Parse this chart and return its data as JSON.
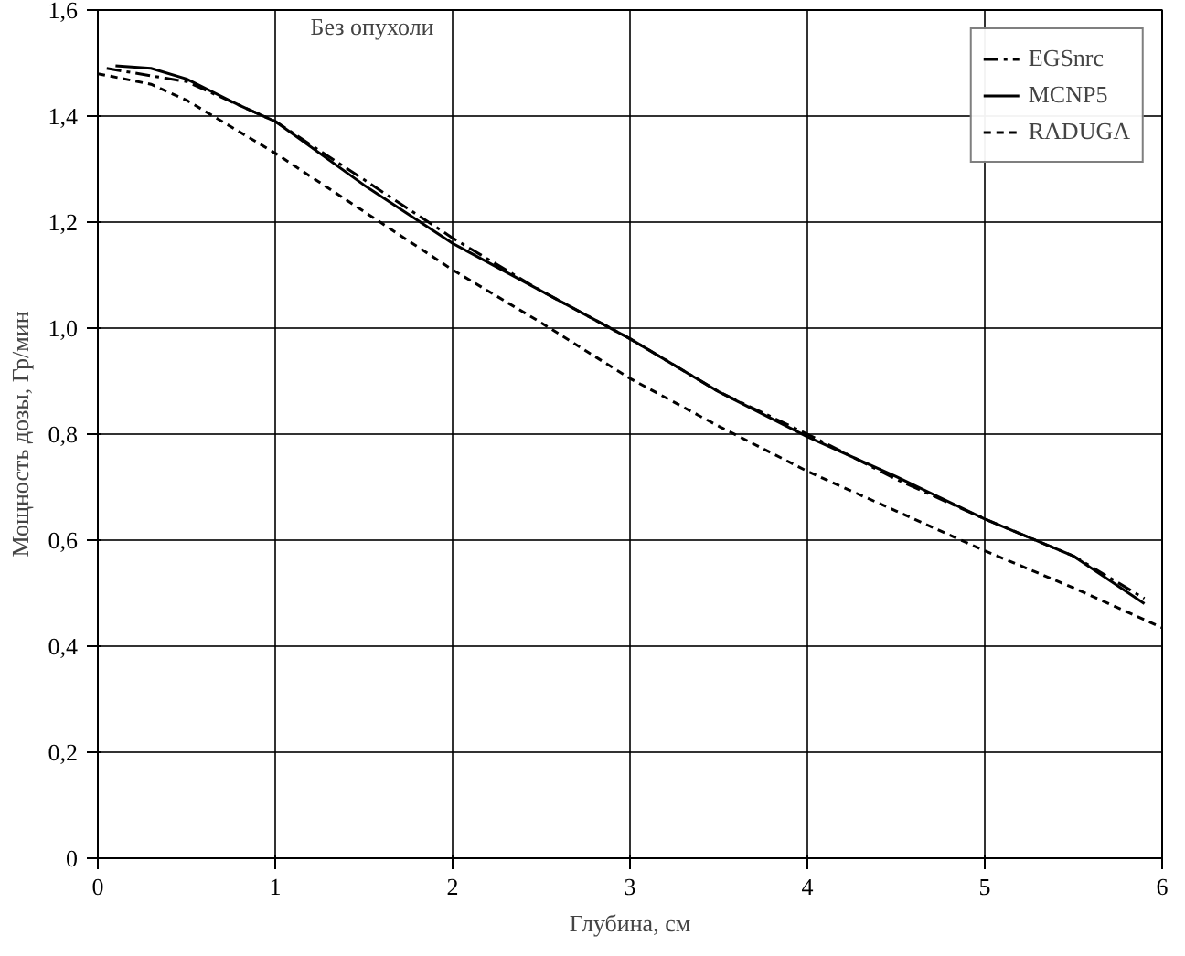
{
  "chart_data": {
    "type": "line",
    "xlabel": "Глубина, см",
    "ylabel": "Мощность дозы, Гр/мин",
    "xlim": [
      0,
      6
    ],
    "ylim": [
      0,
      1.6
    ],
    "xticks": [
      0,
      1,
      2,
      3,
      4,
      5,
      6
    ],
    "yticks": [
      {
        "value": 0,
        "label": "0"
      },
      {
        "value": 0.2,
        "label": "0,2"
      },
      {
        "value": 0.4,
        "label": "0,4"
      },
      {
        "value": 0.6,
        "label": "0,6"
      },
      {
        "value": 0.8,
        "label": "0,8"
      },
      {
        "value": 1.0,
        "label": "1,0"
      },
      {
        "value": 1.2,
        "label": "1,2"
      },
      {
        "value": 1.4,
        "label": "1,4"
      },
      {
        "value": 1.6,
        "label": "1,6"
      }
    ],
    "grid": true,
    "legend": "top right",
    "annotations": [
      "Без опухоли"
    ],
    "series": [
      {
        "name": "EGSnrc",
        "color": "#000000",
        "line_style": "dashdot",
        "x": [
          0.05,
          0.5,
          1,
          1.5,
          2,
          2.5,
          3,
          3.5,
          4,
          4.5,
          5,
          5.5,
          5.9
        ],
        "values": [
          1.49,
          1.465,
          1.39,
          1.28,
          1.17,
          1.07,
          0.98,
          0.88,
          0.8,
          0.715,
          0.64,
          0.57,
          0.49
        ]
      },
      {
        "name": "MCNP5",
        "color": "#000000",
        "line_style": "solid",
        "x": [
          0.1,
          0.3,
          0.5,
          0.8,
          1,
          1.5,
          2,
          2.5,
          3,
          3.5,
          4,
          4.5,
          5,
          5.5,
          5.9
        ],
        "values": [
          1.495,
          1.49,
          1.47,
          1.42,
          1.39,
          1.27,
          1.16,
          1.07,
          0.98,
          0.88,
          0.795,
          0.72,
          0.64,
          0.57,
          0.48
        ]
      },
      {
        "name": "RADUGA",
        "color": "#000000",
        "line_style": "dashed",
        "x": [
          0,
          0.3,
          0.5,
          1,
          1.5,
          2,
          2.5,
          3,
          3.5,
          4,
          4.5,
          5,
          5.5,
          6
        ],
        "values": [
          1.48,
          1.46,
          1.43,
          1.33,
          1.22,
          1.11,
          1.01,
          0.905,
          0.815,
          0.73,
          0.655,
          0.58,
          0.51,
          0.435
        ]
      }
    ]
  }
}
